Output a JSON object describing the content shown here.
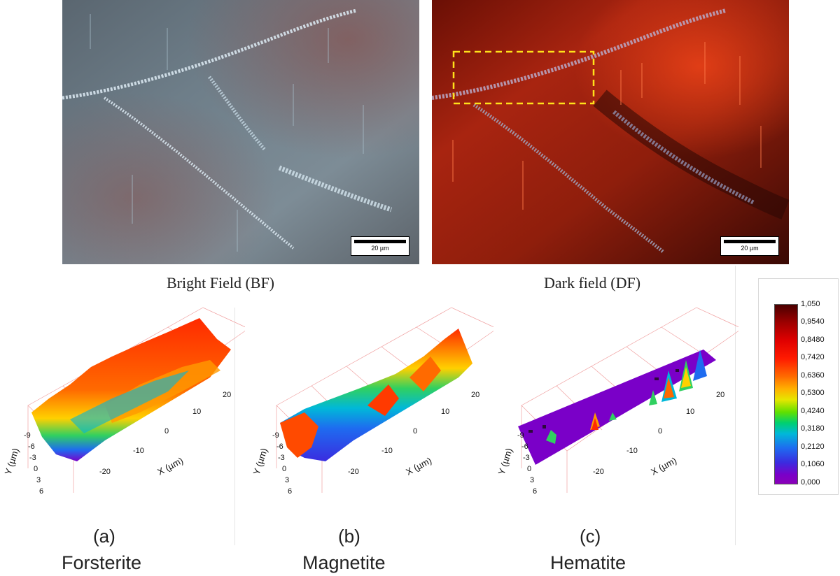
{
  "micrographs": {
    "bf": {
      "scale_label": "20 µm",
      "caption": "Bright Field (BF)"
    },
    "df": {
      "scale_label": "20 µm",
      "caption": "Dark field (DF)"
    }
  },
  "plots": [
    {
      "letter": "(a)",
      "mineral": "Forsterite"
    },
    {
      "letter": "(b)",
      "mineral": "Magnetite"
    },
    {
      "letter": "(c)",
      "mineral": "Hematite"
    }
  ],
  "axes": {
    "x_label": "X (µm)",
    "y_label": "Y (µm)",
    "x_ticks": [
      "-20",
      "-10",
      "0",
      "10",
      "20"
    ],
    "y_ticks": [
      "-9",
      "-6",
      "-3",
      "0",
      "3",
      "6"
    ]
  },
  "colorbar": {
    "ticks": [
      "1,050",
      "0,9540",
      "0,8480",
      "0,7420",
      "0,6360",
      "0,5300",
      "0,4240",
      "0,3180",
      "0,2120",
      "0,1060",
      "0,000"
    ]
  }
}
